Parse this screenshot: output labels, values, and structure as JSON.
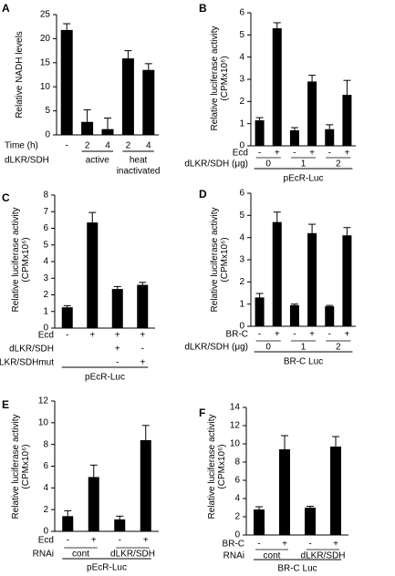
{
  "figure": {
    "panels": [
      "A",
      "B",
      "C",
      "D",
      "E",
      "F"
    ]
  },
  "chart_data": [
    {
      "panel": "A",
      "type": "bar",
      "ylabel": "Relative NADH levels",
      "ylim": [
        0,
        25
      ],
      "yticks": [
        0,
        5,
        10,
        15,
        20,
        25
      ],
      "values": [
        21.8,
        2.7,
        1.2,
        15.9,
        13.5
      ],
      "errors": [
        1.3,
        2.5,
        2.3,
        1.6,
        1.3
      ],
      "rows": [
        {
          "label": "Time (h)",
          "values": [
            "-",
            "2",
            "4",
            "2",
            "4"
          ]
        }
      ],
      "groups": [
        {
          "label": "dLKR/SDH",
          "span": [],
          "underline": false
        },
        {
          "label": "active",
          "span": [
            1,
            2
          ],
          "underline": true
        },
        {
          "label": "heat",
          "span": [
            3,
            4
          ],
          "underline": true
        },
        {
          "label": "inactivated",
          "span": [
            3,
            4
          ],
          "underline": false
        }
      ]
    },
    {
      "panel": "B",
      "type": "bar",
      "ylabel": "Relative luciferase activity",
      "ylabel2": "(CPMx10⁶)",
      "ylim": [
        0,
        6
      ],
      "yticks": [
        0,
        1,
        2,
        3,
        4,
        5,
        6
      ],
      "values": [
        1.15,
        5.3,
        0.7,
        2.9,
        0.75,
        2.3
      ],
      "errors": [
        0.12,
        0.25,
        0.12,
        0.28,
        0.2,
        0.65
      ],
      "rows": [
        {
          "label": "Ecd",
          "values": [
            "-",
            "+",
            "-",
            "+",
            "-",
            "+"
          ]
        },
        {
          "label": "dLKR/SDH (μg)",
          "values": [
            "0",
            "1",
            "2"
          ],
          "paired": true
        }
      ],
      "groups": [
        {
          "label": "pEcR-Luc",
          "span": [
            0,
            5
          ],
          "underline": true
        }
      ]
    },
    {
      "panel": "C",
      "type": "bar",
      "ylabel": "Relative luciferase activity",
      "ylabel2": "(CPMx10⁶)",
      "ylim": [
        0,
        8
      ],
      "yticks": [
        0,
        1,
        2,
        3,
        4,
        5,
        6,
        7,
        8
      ],
      "values": [
        1.25,
        6.35,
        2.35,
        2.6
      ],
      "errors": [
        0.1,
        0.6,
        0.15,
        0.15
      ],
      "rows": [
        {
          "label": "Ecd",
          "values": [
            "-",
            "+",
            "+",
            "+"
          ]
        },
        {
          "label": "dLKR/SDH",
          "values": [
            "",
            "",
            "+",
            "-"
          ]
        },
        {
          "label": "dLKR/SDHmut",
          "values": [
            "",
            "",
            "-",
            "+"
          ]
        }
      ],
      "groups": [
        {
          "label": "pEcR-Luc",
          "span": [
            0,
            3
          ],
          "underline": true
        }
      ]
    },
    {
      "panel": "D",
      "type": "bar",
      "ylabel": "Relative luciferase activity",
      "ylabel2": "(CPMx10⁶)",
      "ylim": [
        0,
        6
      ],
      "yticks": [
        0,
        1,
        2,
        3,
        4,
        5,
        6
      ],
      "values": [
        1.3,
        4.7,
        0.95,
        4.2,
        0.9,
        4.1
      ],
      "errors": [
        0.18,
        0.45,
        0.05,
        0.4,
        0.04,
        0.35
      ],
      "rows": [
        {
          "label": "BR-C",
          "values": [
            "-",
            "+",
            "-",
            "+",
            "-",
            "+"
          ]
        },
        {
          "label": "dLKR/SDH (μg)",
          "values": [
            "0",
            "1",
            "2"
          ],
          "paired": true
        }
      ],
      "groups": [
        {
          "label": "BR-C Luc",
          "span": [
            0,
            5
          ],
          "underline": true
        }
      ]
    },
    {
      "panel": "E",
      "type": "bar",
      "ylabel": "Relative luciferase activity",
      "ylabel2": "(CPMx10⁶)",
      "ylim": [
        0,
        12
      ],
      "yticks": [
        0,
        2,
        4,
        6,
        8,
        10,
        12
      ],
      "values": [
        1.4,
        5.0,
        1.1,
        8.4
      ],
      "errors": [
        0.5,
        1.1,
        0.3,
        1.35
      ],
      "rows": [
        {
          "label": "Ecd",
          "values": [
            "-",
            "+",
            "-",
            "+"
          ]
        },
        {
          "label": "RNAi",
          "values": [
            "cont",
            "dLKR/SDH"
          ],
          "paired": true
        }
      ],
      "groups": [
        {
          "label": "pEcR-Luc",
          "span": [
            0,
            3
          ],
          "underline": true
        }
      ]
    },
    {
      "panel": "F",
      "type": "bar",
      "ylabel": "Relative luciferase activity",
      "ylabel2": "(CPMx10⁶)",
      "ylim": [
        0,
        14
      ],
      "yticks": [
        0,
        2,
        4,
        6,
        8,
        10,
        12,
        14
      ],
      "values": [
        2.8,
        9.4,
        3.0,
        9.7
      ],
      "errors": [
        0.3,
        1.5,
        0.15,
        1.1
      ],
      "rows": [
        {
          "label": "BR-C",
          "values": [
            "-",
            "+",
            "-",
            "+"
          ]
        },
        {
          "label": "RNAi",
          "values": [
            "cont",
            "dLKR/SDH"
          ],
          "paired": true
        }
      ],
      "groups": [
        {
          "label": "BR-C Luc",
          "span": [
            0,
            3
          ],
          "underline": true
        }
      ]
    }
  ]
}
